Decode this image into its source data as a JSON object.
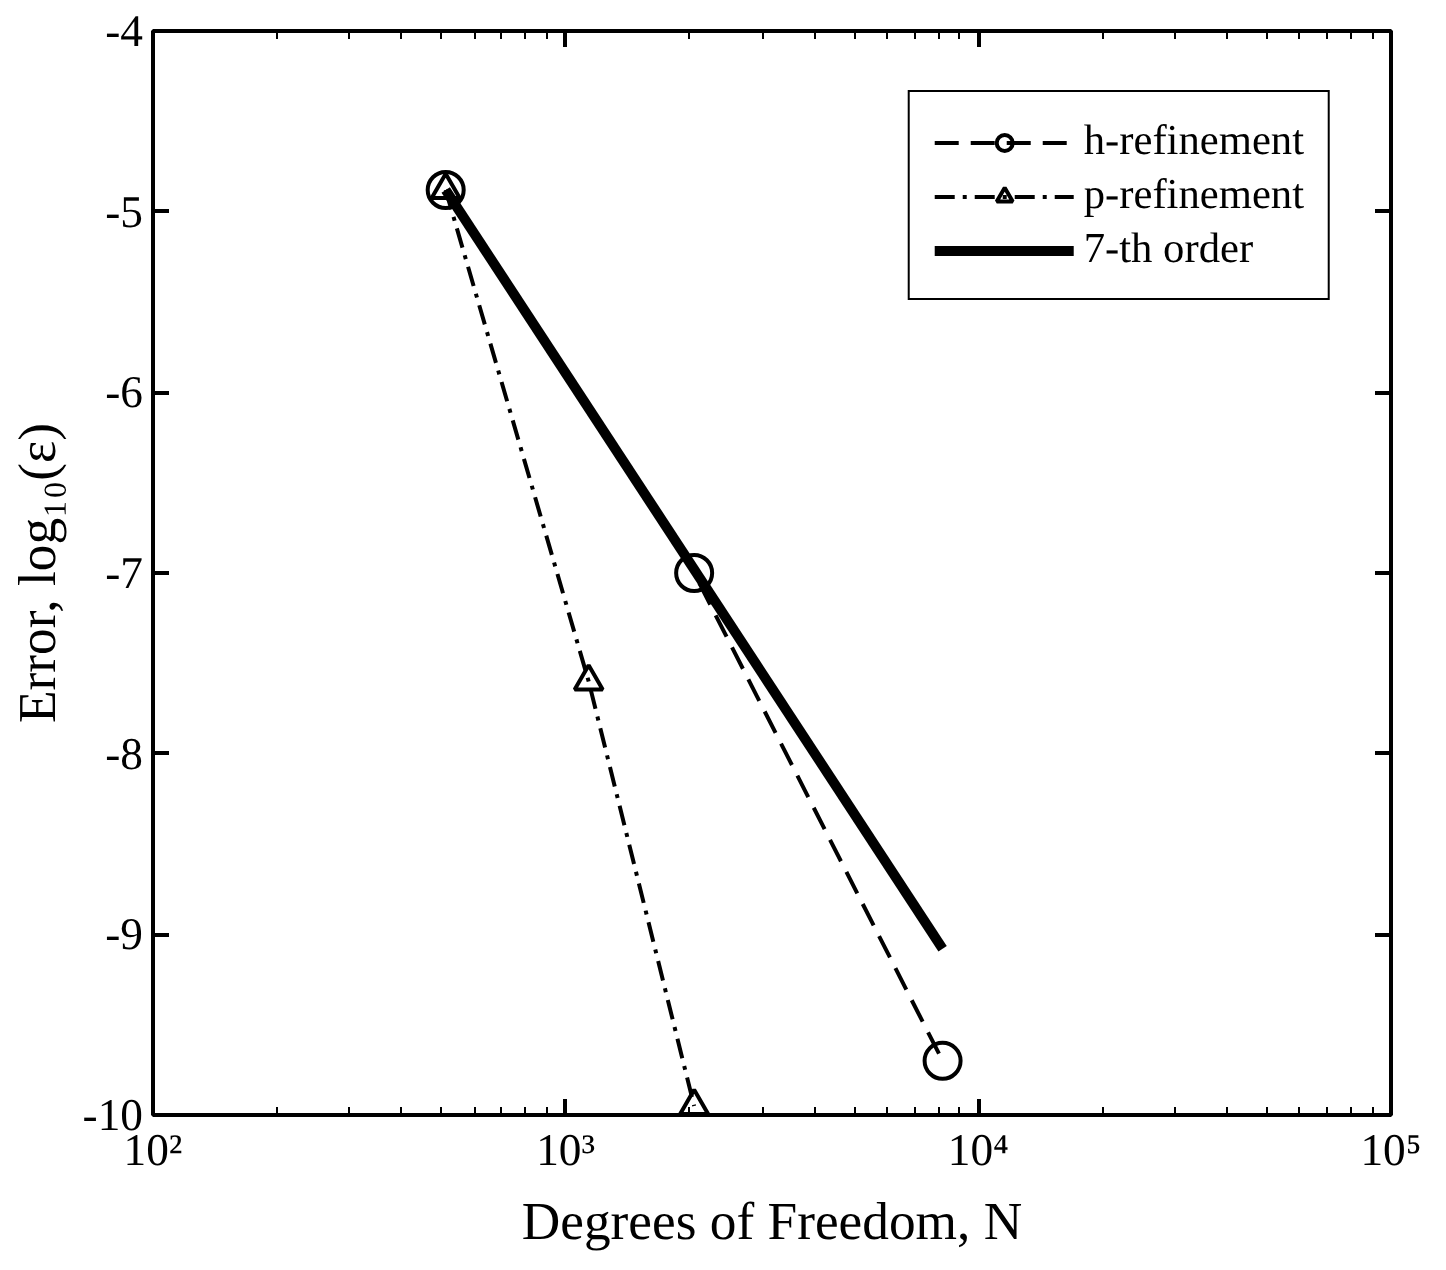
{
  "chart_data": {
    "type": "line",
    "xlabel": "Degrees of Freedom, N",
    "ylabel": "Error, log₁₀(ε)",
    "log": "x",
    "xlim": [
      100,
      100000
    ],
    "xticks": [
      {
        "value": 100,
        "label": "10²"
      },
      {
        "value": 1000,
        "label": "10³"
      },
      {
        "value": 10000,
        "label": "10⁴"
      },
      {
        "value": 100000,
        "label": "10⁵"
      }
    ],
    "ylim": [
      -10,
      -4
    ],
    "yticks": [
      -10,
      -9,
      -8,
      -7,
      -6,
      -5,
      -4
    ],
    "grid": false,
    "legend": "top right",
    "series": [
      {
        "name": "h-refinement",
        "color": "#000000",
        "x": [
          512,
          2048,
          8192
        ],
        "values": [
          -4.88,
          -7.0,
          -9.7
        ],
        "marker": "circle",
        "line_style": "dashed"
      },
      {
        "name": "p-refinement",
        "color": "#000000",
        "x": [
          512,
          1137,
          2048
        ],
        "values": [
          -4.88,
          -7.6,
          -9.95
        ],
        "marker": "triangle",
        "line_style": "dashdot"
      },
      {
        "name": "7-th order",
        "color": "#000000",
        "x": [
          512,
          8192
        ],
        "values": [
          -4.88,
          -9.08
        ],
        "marker": "none",
        "line_style": "solid"
      }
    ]
  }
}
